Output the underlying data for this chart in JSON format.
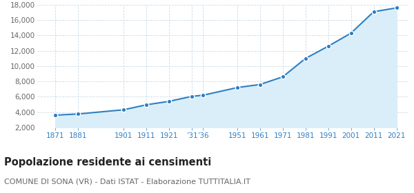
{
  "years": [
    1871,
    1881,
    1901,
    1911,
    1921,
    1931,
    1936,
    1951,
    1961,
    1971,
    1981,
    1991,
    2001,
    2011,
    2021
  ],
  "population": [
    3600,
    3750,
    4300,
    4950,
    5400,
    6050,
    6200,
    7200,
    7600,
    8600,
    11000,
    12600,
    14300,
    17100,
    17600
  ],
  "ylim": [
    2000,
    18000
  ],
  "xlim": [
    1863,
    2026
  ],
  "yticks": [
    2000,
    4000,
    6000,
    8000,
    10000,
    12000,
    14000,
    16000,
    18000
  ],
  "x_positions": [
    1871,
    1881,
    1901,
    1911,
    1921,
    1931,
    1936,
    1951,
    1961,
    1971,
    1981,
    1991,
    2001,
    2011,
    2021
  ],
  "x_labels": [
    "1871",
    "1881",
    "1901",
    "1911",
    "1921",
    "’31",
    "’36",
    "1951",
    "1961",
    "1971",
    "1981",
    "1991",
    "2001",
    "2011",
    "2021"
  ],
  "line_color": "#2d7ec4",
  "fill_color": "#daeef9",
  "marker_color": "#2d7ec4",
  "grid_color": "#c8dce8",
  "background_color": "#ffffff",
  "title": "Popolazione residente ai censimenti",
  "subtitle": "COMUNE DI SONA (VR) - Dati ISTAT - Elaborazione TUTTITALIA.IT",
  "title_fontsize": 10.5,
  "subtitle_fontsize": 8,
  "tick_label_color": "#2d7ec4",
  "ytick_label_color": "#666666",
  "tick_fontsize": 7.5
}
